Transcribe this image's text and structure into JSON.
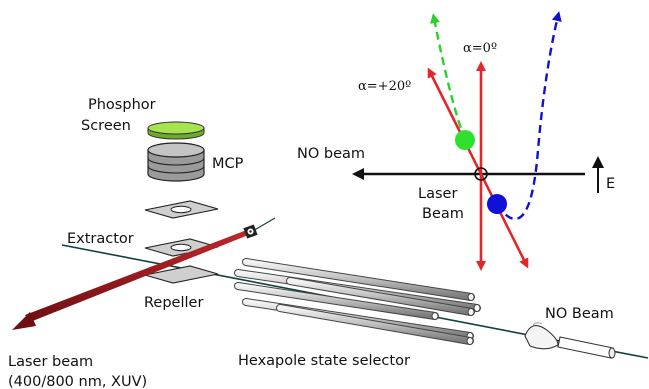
{
  "labels": {
    "phosphor_line1": "Phosphor",
    "phosphor_line2": "Screen",
    "mcp": "MCP",
    "extractor": "Extractor",
    "repeller": "Repeller",
    "laser_beam_line1": "Laser beam",
    "laser_beam_line2": "(400/800 nm, XUV)",
    "hexapole": "Hexapole state selector",
    "no_beam_bottom": "NO Beam",
    "no_beam_top": "NO beam",
    "laser_beam_center_line1": "Laser",
    "laser_beam_center_line2": "Beam",
    "e_field": "E",
    "alpha_zero": "α=0º",
    "alpha_twenty": "α=+20º"
  },
  "colors": {
    "laser_red": "#e3262b",
    "laser_dark_red": "#7a0f12",
    "green_curve": "#2bd12b",
    "green_dot": "#2fe02f",
    "blue_curve": "#1111cc",
    "blue_dot": "#1010d8",
    "phosphor_green": "#a6e34f",
    "mcp_gray": "#a9a9a9",
    "plate_gray": "#c7c7c7",
    "beam_line": "#12403e"
  }
}
